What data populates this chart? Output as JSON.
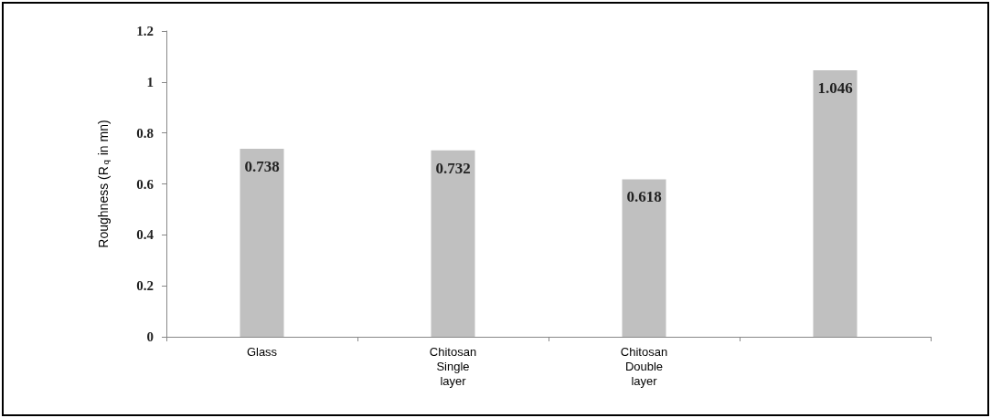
{
  "chart_data": {
    "type": "bar",
    "ylabel": "Roughness (R$_{q}$ in mn)",
    "categories": [
      "Glass",
      "Chitosan\nSingle\nlayer",
      "Chitosan\nDouble\nlayer",
      null
    ],
    "values": [
      0.738,
      0.732,
      0.618,
      1.046
    ],
    "color": "#c0c0c0",
    "ylim": [
      0,
      1.2
    ],
    "yticks": [
      0,
      0.2,
      0.4,
      0.6,
      0.8,
      1,
      1.2
    ],
    "data_labels": true
  }
}
